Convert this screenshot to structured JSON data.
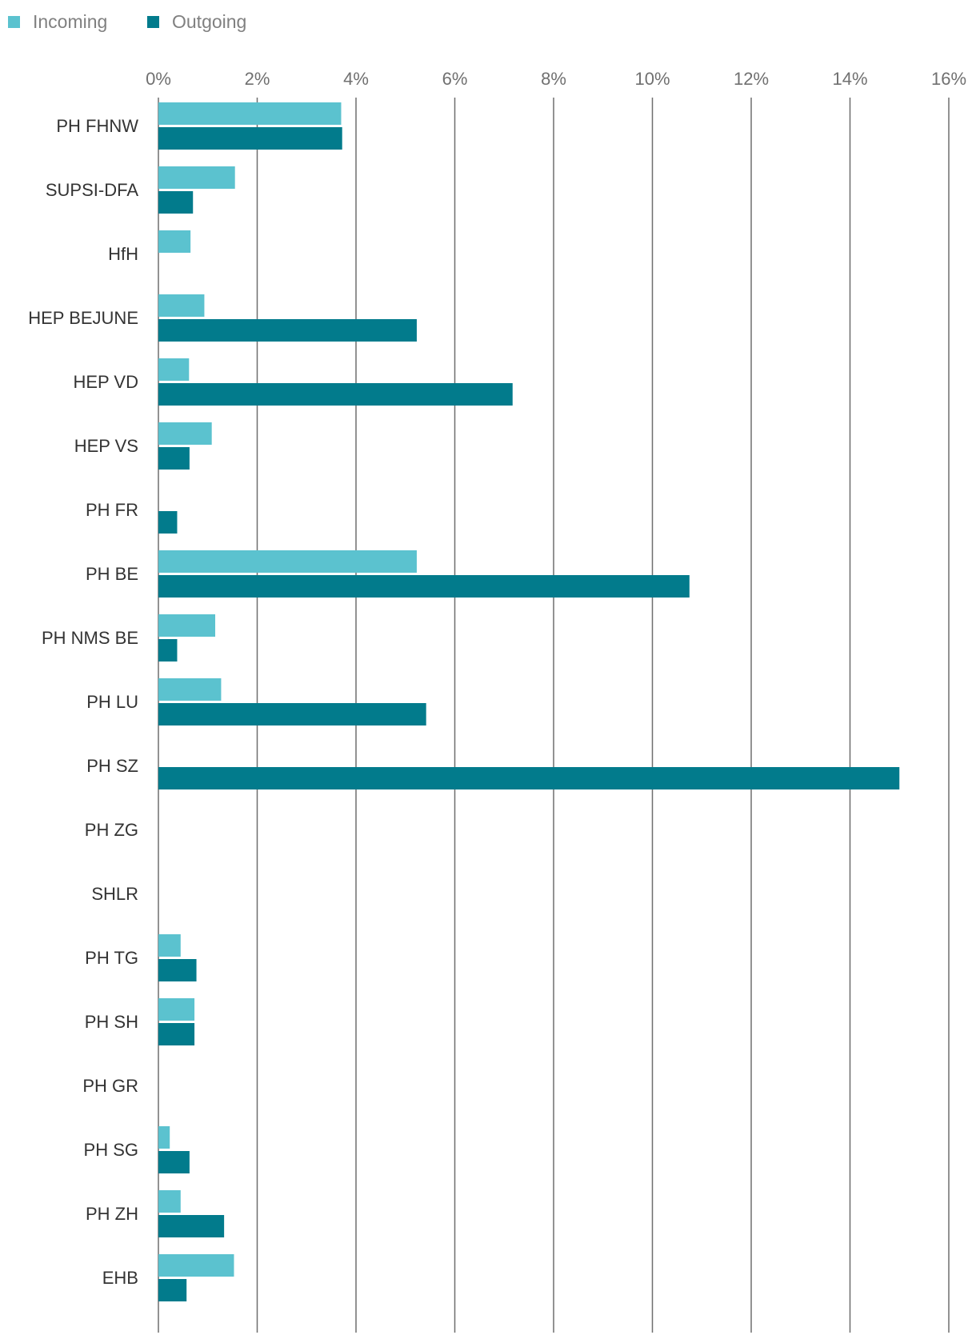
{
  "chart_data": {
    "type": "bar",
    "orientation": "horizontal",
    "categories": [
      "PH FHNW",
      "SUPSI-DFA",
      "HfH",
      "HEP BEJUNE",
      "HEP VD",
      "HEP VS",
      "PH FR",
      "PH BE",
      "PH NMS BE",
      "PH LU",
      "PH SZ",
      "PH ZG",
      "SHLR",
      "PH TG",
      "PH SH",
      "PH GR",
      "PH SG",
      "PH ZH",
      "EHB"
    ],
    "series": [
      {
        "name": "Incoming",
        "color": "#5bc2cf",
        "values": [
          3.7,
          1.55,
          0.65,
          0.93,
          0.62,
          1.08,
          0,
          5.23,
          1.15,
          1.27,
          0,
          0,
          0,
          0.45,
          0.73,
          0,
          0.23,
          0.45,
          1.53
        ]
      },
      {
        "name": "Outgoing",
        "color": "#027b8c",
        "values": [
          3.72,
          0.7,
          0,
          5.23,
          7.17,
          0.63,
          0.38,
          10.75,
          0.38,
          5.42,
          15.0,
          0,
          0,
          0.77,
          0.73,
          0,
          0.63,
          1.33,
          0.57
        ]
      }
    ],
    "x_ticks": [
      "0%",
      "2%",
      "4%",
      "6%",
      "8%",
      "10%",
      "12%",
      "14%",
      "16%"
    ],
    "xlim": [
      0,
      16
    ],
    "x_unit": "%",
    "grid": true,
    "legend_position": "top-left"
  }
}
